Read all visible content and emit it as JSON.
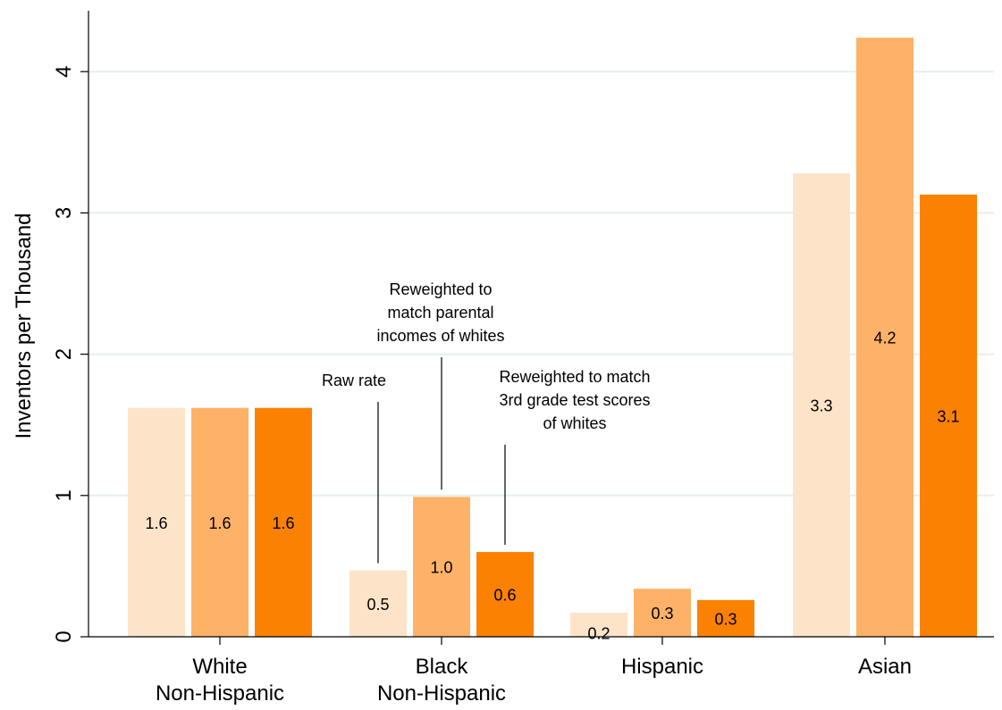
{
  "chart_data": {
    "type": "bar",
    "ylabel": "Inventors per Thousand",
    "xlabel": "",
    "ylim": [
      0,
      4.5
    ],
    "yticks": [
      "0",
      "1",
      "2",
      "3",
      "4"
    ],
    "grid": true,
    "categories": [
      [
        "White",
        "Non-Hispanic"
      ],
      [
        "Black",
        "Non-Hispanic"
      ],
      [
        "Hispanic"
      ],
      [
        "Asian"
      ]
    ],
    "series": [
      {
        "color": "#fde4c9",
        "values": [
          1.62,
          0.47,
          0.17,
          3.28
        ],
        "labels": [
          "1.6",
          "0.5",
          "0.2",
          "3.3"
        ]
      },
      {
        "color": "#fdb267",
        "values": [
          1.62,
          0.99,
          0.34,
          4.24
        ],
        "labels": [
          "1.6",
          "1.0",
          "0.3",
          "4.2"
        ]
      },
      {
        "color": "#fb8103",
        "values": [
          1.62,
          0.6,
          0.26,
          3.13
        ],
        "labels": [
          "1.6",
          "0.6",
          "0.3",
          "3.1"
        ]
      }
    ],
    "annotations": [
      {
        "series": 0,
        "category": 1,
        "lines": [
          "Raw rate"
        ]
      },
      {
        "series": 1,
        "category": 1,
        "lines": [
          "Reweighted to",
          "match parental",
          "incomes of whites"
        ]
      },
      {
        "series": 2,
        "category": 1,
        "lines": [
          "Reweighted to match",
          "3rd grade test scores",
          "of whites"
        ]
      }
    ]
  }
}
